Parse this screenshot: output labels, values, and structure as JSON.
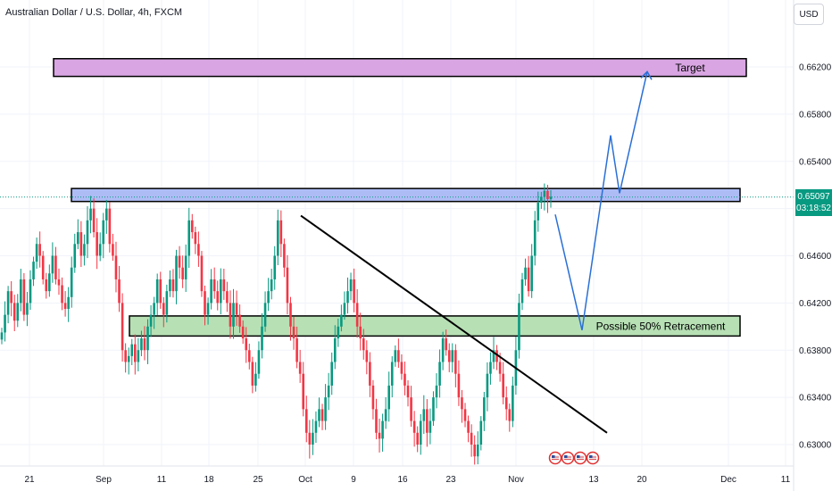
{
  "header": {
    "symbol_title": "Australian Dollar / U.S. Dollar, 4h, FXCM",
    "currency_button": "USD"
  },
  "price_tag": {
    "price": "0.65097",
    "countdown": "03:18:52"
  },
  "colors": {
    "up": "#089981",
    "down": "#f23645",
    "target_zone": "#d9a6e3",
    "resistance_zone": "#aebcf5",
    "support_zone": "#b7e0b5",
    "projection": "#2a6fd6",
    "trendline": "#000000"
  },
  "chart_data": {
    "type": "candlestick",
    "title": "Australian Dollar / U.S. Dollar, 4h, FXCM",
    "ylim": [
      0.6285,
      0.665
    ],
    "y_ticks": [
      "0.66200",
      "0.65800",
      "0.65400",
      "0.65000",
      "0.64600",
      "0.64200",
      "0.63800",
      "0.63400",
      "0.63000"
    ],
    "x_ticks": [
      "21",
      "Sep",
      "11",
      "18",
      "25",
      "Oct",
      "9",
      "16",
      "23",
      "Nov",
      "13",
      "20",
      "Dec",
      "11"
    ],
    "last_price": 0.65097,
    "zones": [
      {
        "name": "target",
        "label": "Target",
        "low": 0.6612,
        "high": 0.6627,
        "from": "Aug 23",
        "to": "Dec 1"
      },
      {
        "name": "resistance",
        "label": "",
        "low": 0.6506,
        "high": 0.6517,
        "from": "Aug 24",
        "to": "Nov 24"
      },
      {
        "name": "support",
        "label": "Possible 50% Retracement",
        "low": 0.6392,
        "high": 0.6409,
        "from": "Sep 7",
        "to": "Nov 24"
      }
    ],
    "trendline": {
      "from": {
        "x": "Oct 1",
        "y": 0.6494
      },
      "to": {
        "x": "Nov 12",
        "y": 0.631
      }
    },
    "projection_path": [
      {
        "x": "Nov 7",
        "y": 0.6495
      },
      {
        "x": "Nov 10",
        "y": 0.6397
      },
      {
        "x": "Nov 13",
        "y": 0.6562
      },
      {
        "x": "Nov 15",
        "y": 0.6513
      },
      {
        "x": "Nov 18",
        "y": 0.6616
      }
    ],
    "close_series": [
      0.6395,
      0.641,
      0.643,
      0.642,
      0.6405,
      0.642,
      0.644,
      0.641,
      0.642,
      0.644,
      0.6455,
      0.647,
      0.646,
      0.644,
      0.643,
      0.6445,
      0.646,
      0.644,
      0.6435,
      0.642,
      0.6415,
      0.6425,
      0.645,
      0.647,
      0.648,
      0.646,
      0.647,
      0.649,
      0.65,
      0.648,
      0.646,
      0.647,
      0.649,
      0.65,
      0.647,
      0.646,
      0.644,
      0.642,
      0.638,
      0.637,
      0.6375,
      0.6385,
      0.637,
      0.638,
      0.639,
      0.638,
      0.64,
      0.641,
      0.642,
      0.644,
      0.642,
      0.641,
      0.643,
      0.644,
      0.643,
      0.646,
      0.645,
      0.644,
      0.646,
      0.649,
      0.648,
      0.647,
      0.646,
      0.643,
      0.641,
      0.642,
      0.644,
      0.643,
      0.642,
      0.644,
      0.643,
      0.642,
      0.64,
      0.642,
      0.641,
      0.64,
      0.639,
      0.638,
      0.637,
      0.635,
      0.636,
      0.638,
      0.64,
      0.642,
      0.643,
      0.644,
      0.646,
      0.649,
      0.647,
      0.645,
      0.642,
      0.64,
      0.639,
      0.637,
      0.636,
      0.633,
      0.631,
      0.63,
      0.631,
      0.632,
      0.633,
      0.632,
      0.634,
      0.635,
      0.637,
      0.639,
      0.64,
      0.641,
      0.642,
      0.643,
      0.644,
      0.642,
      0.64,
      0.639,
      0.638,
      0.637,
      0.635,
      0.633,
      0.631,
      0.6305,
      0.632,
      0.633,
      0.635,
      0.637,
      0.638,
      0.637,
      0.636,
      0.635,
      0.634,
      0.632,
      0.631,
      0.63,
      0.632,
      0.633,
      0.631,
      0.632,
      0.634,
      0.635,
      0.637,
      0.639,
      0.638,
      0.637,
      0.638,
      0.636,
      0.634,
      0.633,
      0.632,
      0.631,
      0.63,
      0.629,
      0.63,
      0.632,
      0.634,
      0.636,
      0.637,
      0.638,
      0.637,
      0.636,
      0.634,
      0.633,
      0.632,
      0.635,
      0.638,
      0.642,
      0.644,
      0.645,
      0.643,
      0.646,
      0.649,
      0.6505,
      0.651,
      0.6515,
      0.6508,
      0.651
    ]
  },
  "event_icons": [
    "us-flag-event-icon",
    "us-flag-event-icon",
    "us-flag-event-icon",
    "us-flag-event-icon"
  ]
}
